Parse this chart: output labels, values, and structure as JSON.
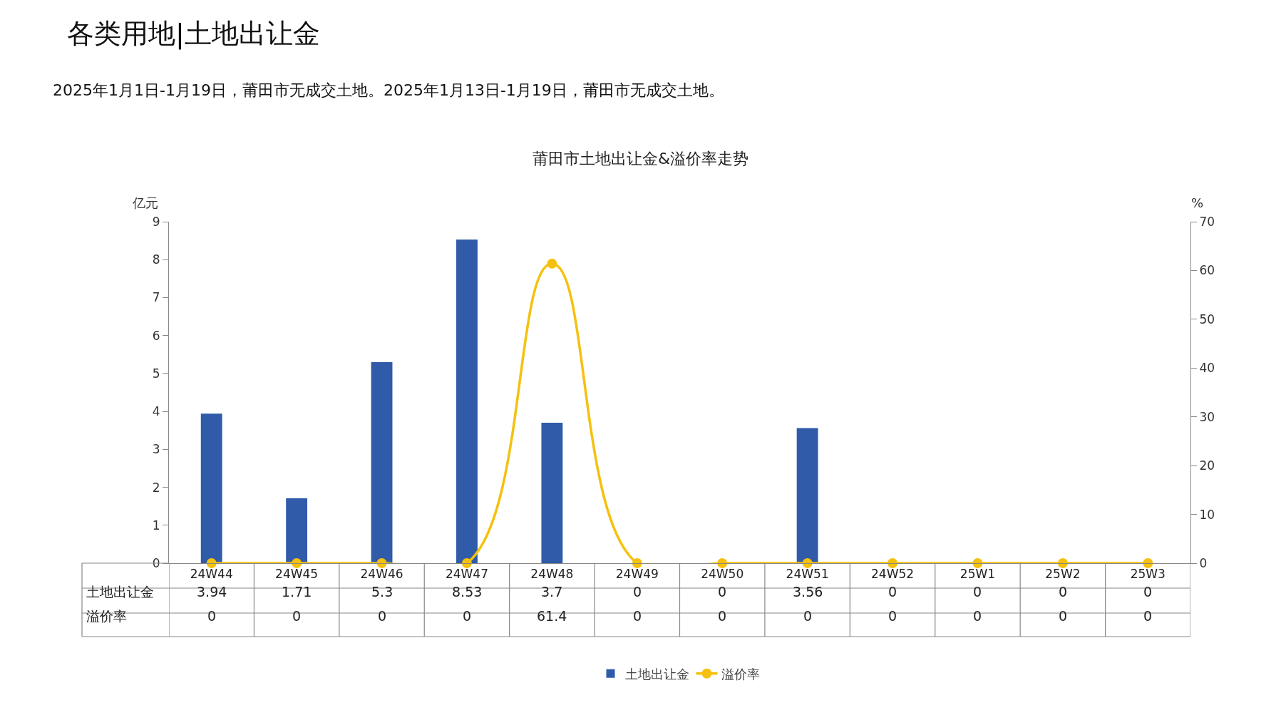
{
  "chart_data": {
    "type": "bar",
    "title": "莆田市土地出让金&溢价率走势",
    "subtitle": "2025年1月1日-1月19日，莆田市无成交土地。2025年1月13日-1月19日，莆田市无成交土地。",
    "annotations": [
      "各类用地|土地出让金"
    ],
    "ylabel": "亿元",
    "y2label": "%",
    "categories": [
      "24W44",
      "24W45",
      "24W46",
      "24W47",
      "24W48",
      "24W49",
      "24W50",
      "24W51",
      "24W52",
      "25W1",
      "25W2",
      "25W3"
    ],
    "series": [
      {
        "name": "土地出让金",
        "color": "#2f5ba9",
        "values": [
          3.94,
          1.71,
          5.3,
          8.53,
          3.7,
          0,
          0,
          3.56,
          0,
          0,
          0,
          0
        ]
      },
      {
        "name": "溢价率",
        "type": "line",
        "axis": "y2",
        "color": "#f5c10e",
        "marker": "circle",
        "values": [
          0,
          0,
          0,
          0,
          61.4,
          0,
          0,
          0,
          0,
          0,
          0,
          0
        ]
      }
    ],
    "ylim": [
      0,
      9
    ],
    "yticks": [
      0,
      1,
      2,
      3,
      4,
      5,
      6,
      7,
      8,
      9
    ],
    "y2lim": [
      0,
      70
    ],
    "y2ticks": [
      0,
      10,
      20,
      30,
      40,
      50,
      60,
      70
    ],
    "data_labels": true,
    "legend": "bottom",
    "grid": false
  }
}
